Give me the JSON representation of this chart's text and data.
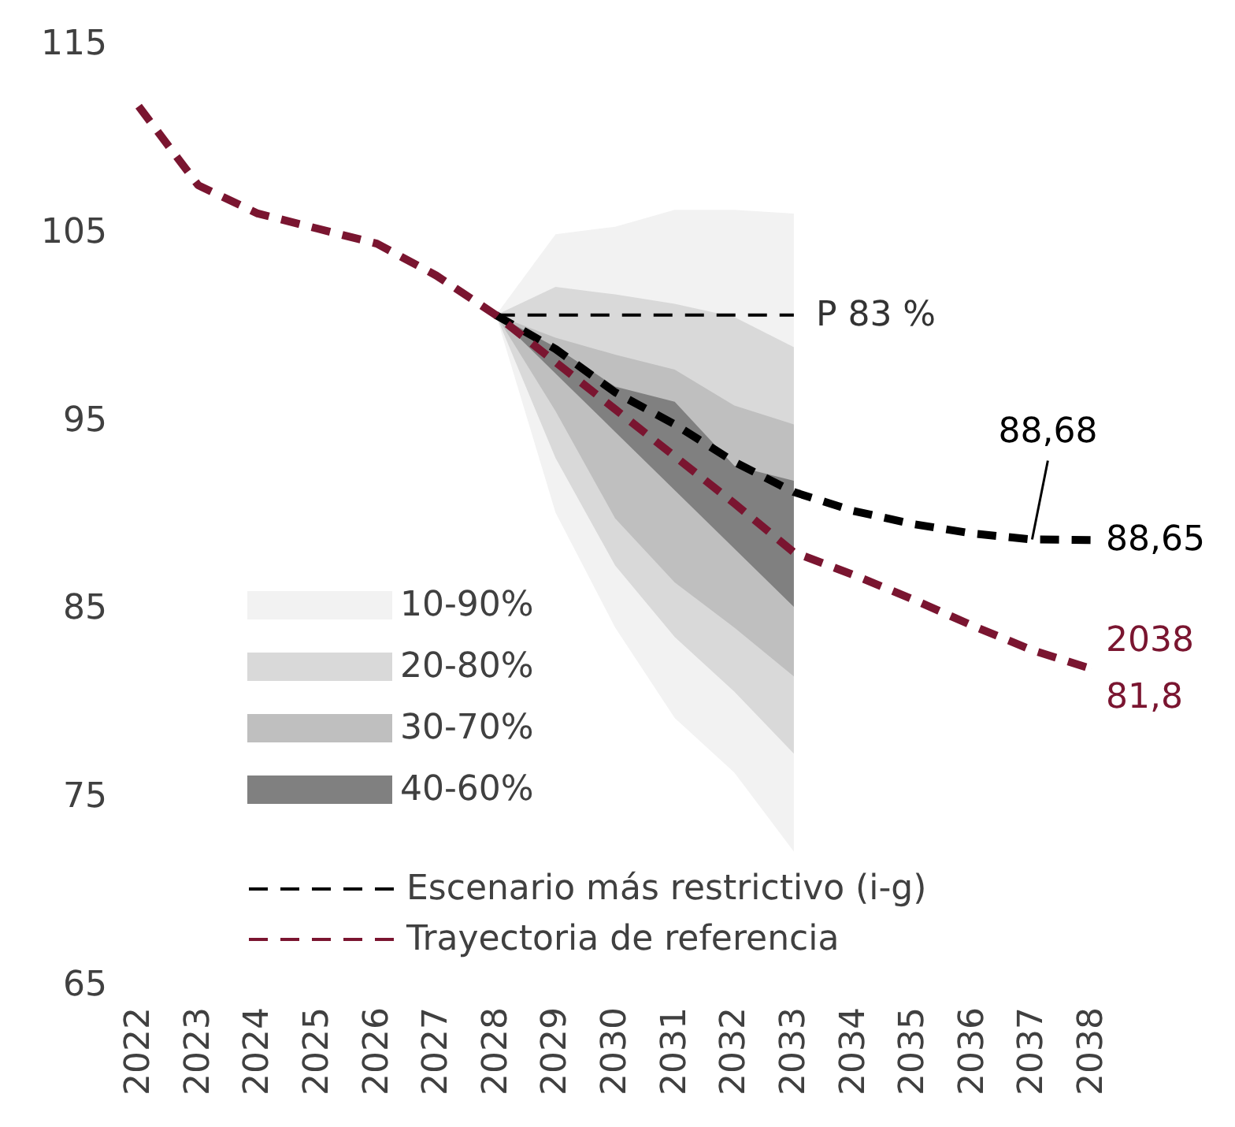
{
  "chart_data": {
    "type": "line",
    "categories": [
      "2022",
      "2023",
      "2024",
      "2025",
      "2026",
      "2027",
      "2028",
      "2029",
      "2030",
      "2031",
      "2032",
      "2033",
      "2034",
      "2035",
      "2036",
      "2037",
      "2038"
    ],
    "ylim": [
      65,
      115
    ],
    "yticks": [
      65,
      75,
      85,
      95,
      105,
      115
    ],
    "grid": false,
    "legend": "bottom left",
    "line_style": "dashed",
    "series": [
      {
        "name": "10-90%",
        "type": "area",
        "color": "#f2f2f2",
        "values": [
          null,
          null,
          null,
          null,
          null,
          null,
          null,
          null,
          null,
          null,
          null,
          null,
          null,
          null,
          null,
          null,
          null
        ],
        "lower": [
          null,
          null,
          null,
          null,
          null,
          null,
          100.6,
          90.1,
          84.0,
          79.2,
          76.3,
          72.1,
          null,
          null,
          null,
          null,
          null
        ],
        "upper": [
          null,
          null,
          null,
          null,
          null,
          null,
          100.6,
          104.9,
          105.3,
          106.2,
          106.2,
          106.0,
          null,
          null,
          null,
          null,
          null
        ]
      },
      {
        "name": "20-80%",
        "type": "area",
        "color": "#d9d9d9",
        "values": [
          null,
          null,
          null,
          null,
          null,
          null,
          null,
          null,
          null,
          null,
          null,
          null,
          null,
          null,
          null,
          null,
          null
        ],
        "lower": [
          null,
          null,
          null,
          null,
          null,
          null,
          100.6,
          93.0,
          87.3,
          83.5,
          80.6,
          77.3,
          null,
          null,
          null,
          null,
          null
        ],
        "upper": [
          null,
          null,
          null,
          null,
          null,
          null,
          100.6,
          102.1,
          101.7,
          101.2,
          100.5,
          98.9,
          null,
          null,
          null,
          null,
          null
        ]
      },
      {
        "name": "30-70%",
        "type": "area",
        "color": "#bfbfbf",
        "values": [
          null,
          null,
          null,
          null,
          null,
          null,
          null,
          null,
          null,
          null,
          null,
          null,
          null,
          null,
          null,
          null,
          null
        ],
        "lower": [
          null,
          null,
          null,
          null,
          null,
          null,
          100.6,
          95.5,
          89.8,
          86.4,
          84.0,
          81.4,
          null,
          null,
          null,
          null,
          null
        ],
        "upper": [
          null,
          null,
          null,
          null,
          null,
          null,
          100.6,
          99.4,
          98.5,
          97.7,
          95.8,
          94.8,
          null,
          null,
          null,
          null,
          null
        ]
      },
      {
        "name": "40-60%",
        "type": "area",
        "color": "#808080",
        "values": [
          null,
          null,
          null,
          null,
          null,
          null,
          null,
          null,
          null,
          null,
          null,
          null,
          null,
          null,
          null,
          null,
          null
        ],
        "lower": [
          null,
          null,
          null,
          null,
          null,
          null,
          100.6,
          97.5,
          94.4,
          91.3,
          88.2,
          85.1,
          null,
          null,
          null,
          null,
          null
        ],
        "upper": [
          null,
          null,
          null,
          null,
          null,
          null,
          100.6,
          98.9,
          96.8,
          96.0,
          92.6,
          91.8,
          null,
          null,
          null,
          null,
          null
        ]
      },
      {
        "color": "#000000",
        "line_style": "dashed",
        "values": [
          null,
          null,
          null,
          null,
          null,
          null,
          100.6,
          100.6,
          100.6,
          100.6,
          100.6,
          100.6,
          null,
          null,
          null,
          null,
          null
        ]
      },
      {
        "name": "Escenario más restrictivo (i-g)",
        "color": "#000000",
        "values": [
          null,
          null,
          null,
          null,
          null,
          null,
          100.6,
          98.8,
          96.5,
          94.8,
          92.8,
          91.2,
          90.2,
          89.5,
          89.0,
          88.68,
          88.65
        ],
        "value_labels": [
          null,
          null,
          null,
          null,
          null,
          null,
          null,
          null,
          null,
          null,
          null,
          null,
          null,
          null,
          null,
          "88,68",
          "88,65"
        ]
      },
      {
        "name": "Trayectoria de referencia",
        "color": "#7a1530",
        "values": [
          111.7,
          107.5,
          106.0,
          105.2,
          104.4,
          102.7,
          100.6,
          98.1,
          95.6,
          93.1,
          90.6,
          88.0,
          86.8,
          85.5,
          84.1,
          82.8,
          81.8
        ],
        "value_labels": [
          null,
          null,
          null,
          null,
          null,
          null,
          null,
          null,
          null,
          null,
          null,
          null,
          null,
          null,
          null,
          null,
          "2038\n81,8"
        ]
      }
    ],
    "annotations": [
      {
        "text": "P 83 %",
        "x": "2033",
        "y": 100.6
      }
    ]
  }
}
